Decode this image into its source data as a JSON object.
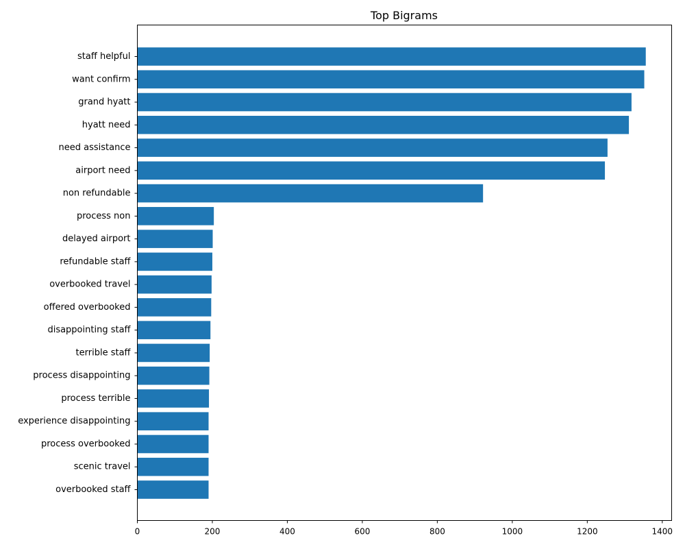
{
  "chart_data": {
    "type": "bar",
    "orientation": "horizontal",
    "title": "Top Bigrams",
    "xlabel": "",
    "ylabel": "",
    "xlim": [
      0,
      1425
    ],
    "xticks": [
      0,
      200,
      400,
      600,
      800,
      1000,
      1200,
      1400
    ],
    "grid": false,
    "color": "#1f77b4",
    "categories": [
      "staff helpful",
      "want confirm",
      "grand hyatt",
      "hyatt need",
      "need assistance",
      "airport need",
      "non refundable",
      "process non",
      "delayed airport",
      "refundable staff",
      "overbooked travel",
      "offered overbooked",
      "disappointing staff",
      "terrible staff",
      "process disappointing",
      "process terrible",
      "experience disappointing",
      "process overbooked",
      "scenic travel",
      "overbooked staff"
    ],
    "values": [
      1356,
      1352,
      1318,
      1311,
      1254,
      1247,
      922,
      204,
      201,
      200,
      198,
      197,
      195,
      193,
      192,
      191,
      190,
      190,
      190,
      190
    ]
  }
}
